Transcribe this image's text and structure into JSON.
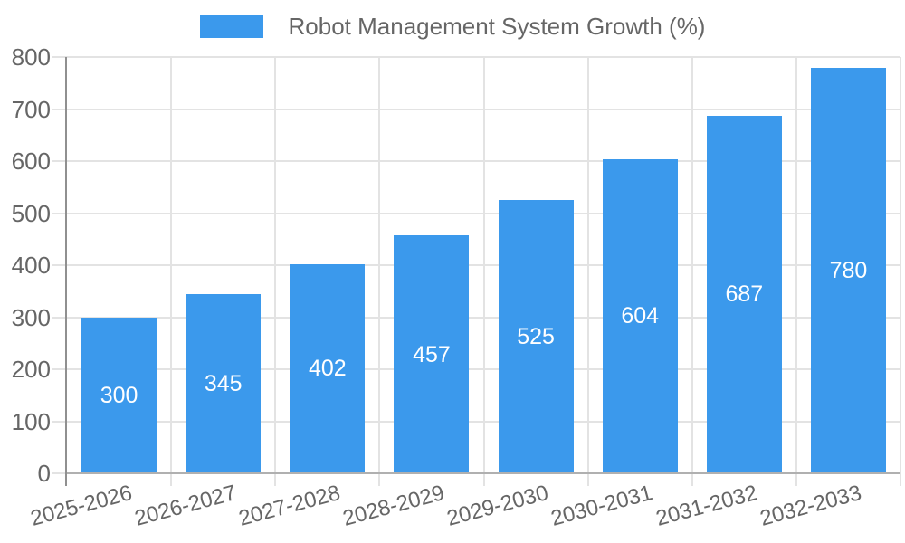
{
  "chart_data": {
    "type": "bar",
    "title": "",
    "legend": {
      "position": "top",
      "entries": [
        {
          "label": "Robot Management System Growth (%)",
          "color": "#3b99ec"
        }
      ]
    },
    "categories": [
      "2025-2026",
      "2026-2027",
      "2027-2028",
      "2028-2029",
      "2029-2030",
      "2030-2031",
      "2031-2032",
      "2032-2033"
    ],
    "values": [
      300,
      345,
      402,
      457,
      525,
      604,
      687,
      780
    ],
    "bar_value_labels": [
      "300",
      "345",
      "402",
      "457",
      "525",
      "604",
      "687",
      "780"
    ],
    "xlabel": "",
    "ylabel": "",
    "ylim": [
      0,
      800
    ],
    "y_ticks": [
      0,
      100,
      200,
      300,
      400,
      500,
      600,
      700,
      800
    ],
    "grid": true
  },
  "colors": {
    "bar": "#3b99ec",
    "bar_value_label": "#ffffff",
    "grid_line": "#e3e3e3",
    "y_axis_line": "#909090",
    "x_axis_line": "#b0b0b0",
    "axis_label_text": "#666666",
    "legend_text": "#666666",
    "background": "#ffffff"
  }
}
